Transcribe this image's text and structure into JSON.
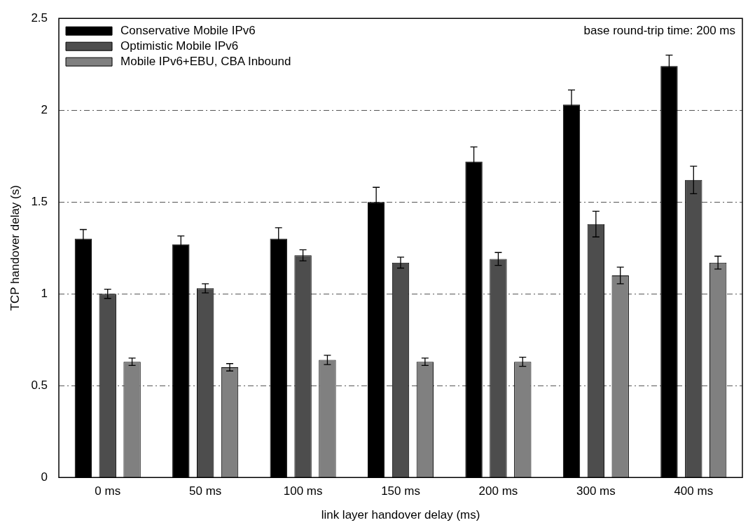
{
  "chart_data": {
    "type": "bar",
    "xlabel": "link layer handover delay (ms)",
    "ylabel": "TCP handover delay (s)",
    "categories": [
      "0 ms",
      "50 ms",
      "100 ms",
      "150 ms",
      "200 ms",
      "300 ms",
      "400 ms"
    ],
    "series": [
      {
        "name": "Conservative Mobile IPv6",
        "color": "#000000",
        "values": [
          1.3,
          1.27,
          1.3,
          1.5,
          1.72,
          2.03,
          2.24
        ],
        "errors": [
          0.05,
          0.045,
          0.06,
          0.08,
          0.08,
          0.08,
          0.06
        ]
      },
      {
        "name": "Optimistic Mobile IPv6",
        "color": "#4d4d4d",
        "values": [
          1.0,
          1.03,
          1.21,
          1.17,
          1.19,
          1.38,
          1.62
        ],
        "errors": [
          0.025,
          0.025,
          0.03,
          0.03,
          0.035,
          0.07,
          0.075
        ]
      },
      {
        "name": "Mobile IPv6+EBU, CBA Inbound",
        "color": "#808080",
        "values": [
          0.63,
          0.6,
          0.64,
          0.63,
          0.63,
          1.1,
          1.17
        ],
        "errors": [
          0.02,
          0.02,
          0.025,
          0.02,
          0.025,
          0.045,
          0.035
        ]
      }
    ],
    "ylim": [
      0,
      2.5
    ],
    "yticks": [
      0,
      0.5,
      1,
      1.5,
      2,
      2.5
    ],
    "grid": "y",
    "legend": "top left",
    "annotations": [
      "base round-trip time: 200 ms"
    ]
  }
}
